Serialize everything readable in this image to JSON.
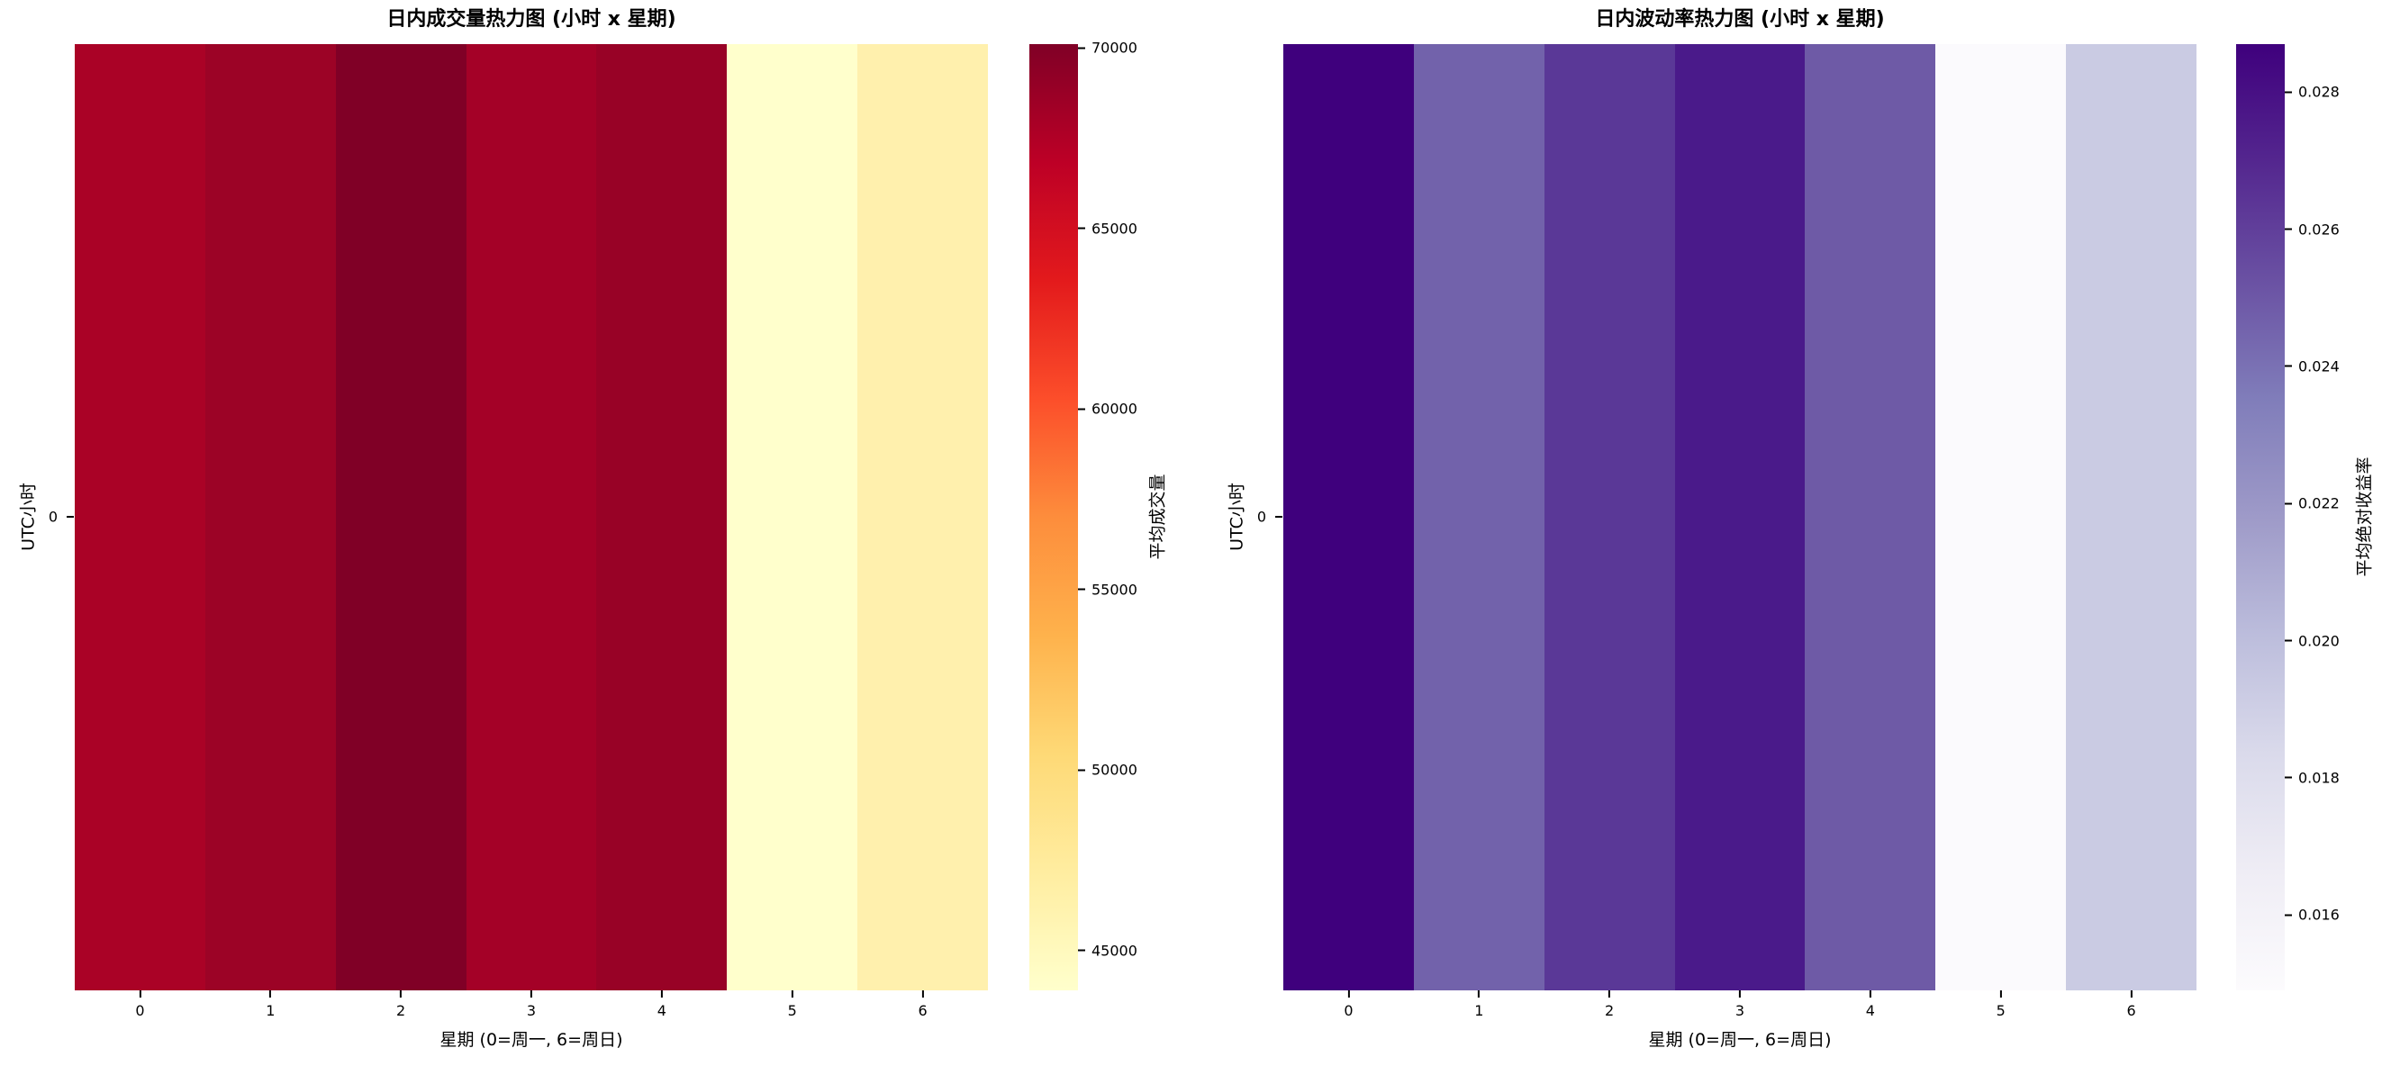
{
  "chart_data": [
    {
      "type": "heatmap",
      "title": "日内成交量热力图 (小时 x 星期)",
      "xlabel": "星期 (0=周一, 6=周日)",
      "ylabel": "UTC小时",
      "colormap": "YlOrRd",
      "x_ticks": [
        "0",
        "1",
        "2",
        "3",
        "4",
        "5",
        "6"
      ],
      "y_ticks": [
        "0"
      ],
      "rows": [
        "0"
      ],
      "values": [
        [
          67700,
          68500,
          70100,
          68000,
          68800,
          44000,
          46900
        ]
      ],
      "cell_colors": [
        [
          "#aa0226",
          "#9c0326",
          "#800026",
          "#a40127",
          "#980226",
          "#ffffcc",
          "#fff0ad"
        ]
      ],
      "colorbar": {
        "label": "平均成交量",
        "ticks": [
          "45000",
          "50000",
          "55000",
          "60000",
          "65000",
          "70000"
        ],
        "tick_values": [
          45000,
          50000,
          55000,
          60000,
          65000,
          70000
        ],
        "vmin": 43900,
        "vmax": 70110,
        "gradient": [
          "#ffffcc",
          "#ffeda0",
          "#fed976",
          "#feb24c",
          "#fd8d3c",
          "#fc4e2a",
          "#e31a1c",
          "#bd0026",
          "#800026"
        ]
      }
    },
    {
      "type": "heatmap",
      "title": "日内波动率热力图 (小时 x 星期)",
      "xlabel": "星期 (0=周一, 6=周日)",
      "ylabel": "UTC小时",
      "colormap": "Purples",
      "x_ticks": [
        "0",
        "1",
        "2",
        "3",
        "4",
        "5",
        "6"
      ],
      "y_ticks": [
        "0"
      ],
      "rows": [
        "0"
      ],
      "values": [
        [
          0.0287,
          0.0246,
          0.0265,
          0.0278,
          0.025,
          0.0149,
          0.0193
        ]
      ],
      "cell_colors": [
        [
          "#3f007d",
          "#7262ab",
          "#5a3897",
          "#4a1a8a",
          "#6e5aa6",
          "#fbfafd",
          "#cacbe3"
        ]
      ],
      "colorbar": {
        "label": "平均绝对收益率",
        "ticks": [
          "0.016",
          "0.018",
          "0.020",
          "0.022",
          "0.024",
          "0.026",
          "0.028"
        ],
        "tick_values": [
          0.016,
          0.018,
          0.02,
          0.022,
          0.024,
          0.026,
          0.028
        ],
        "vmin": 0.0149,
        "vmax": 0.0287,
        "gradient": [
          "#fcfbfd",
          "#efedf5",
          "#dadaeb",
          "#bcbddc",
          "#9e9ac8",
          "#807dba",
          "#6a51a3",
          "#54278f",
          "#3f007d"
        ]
      }
    }
  ]
}
